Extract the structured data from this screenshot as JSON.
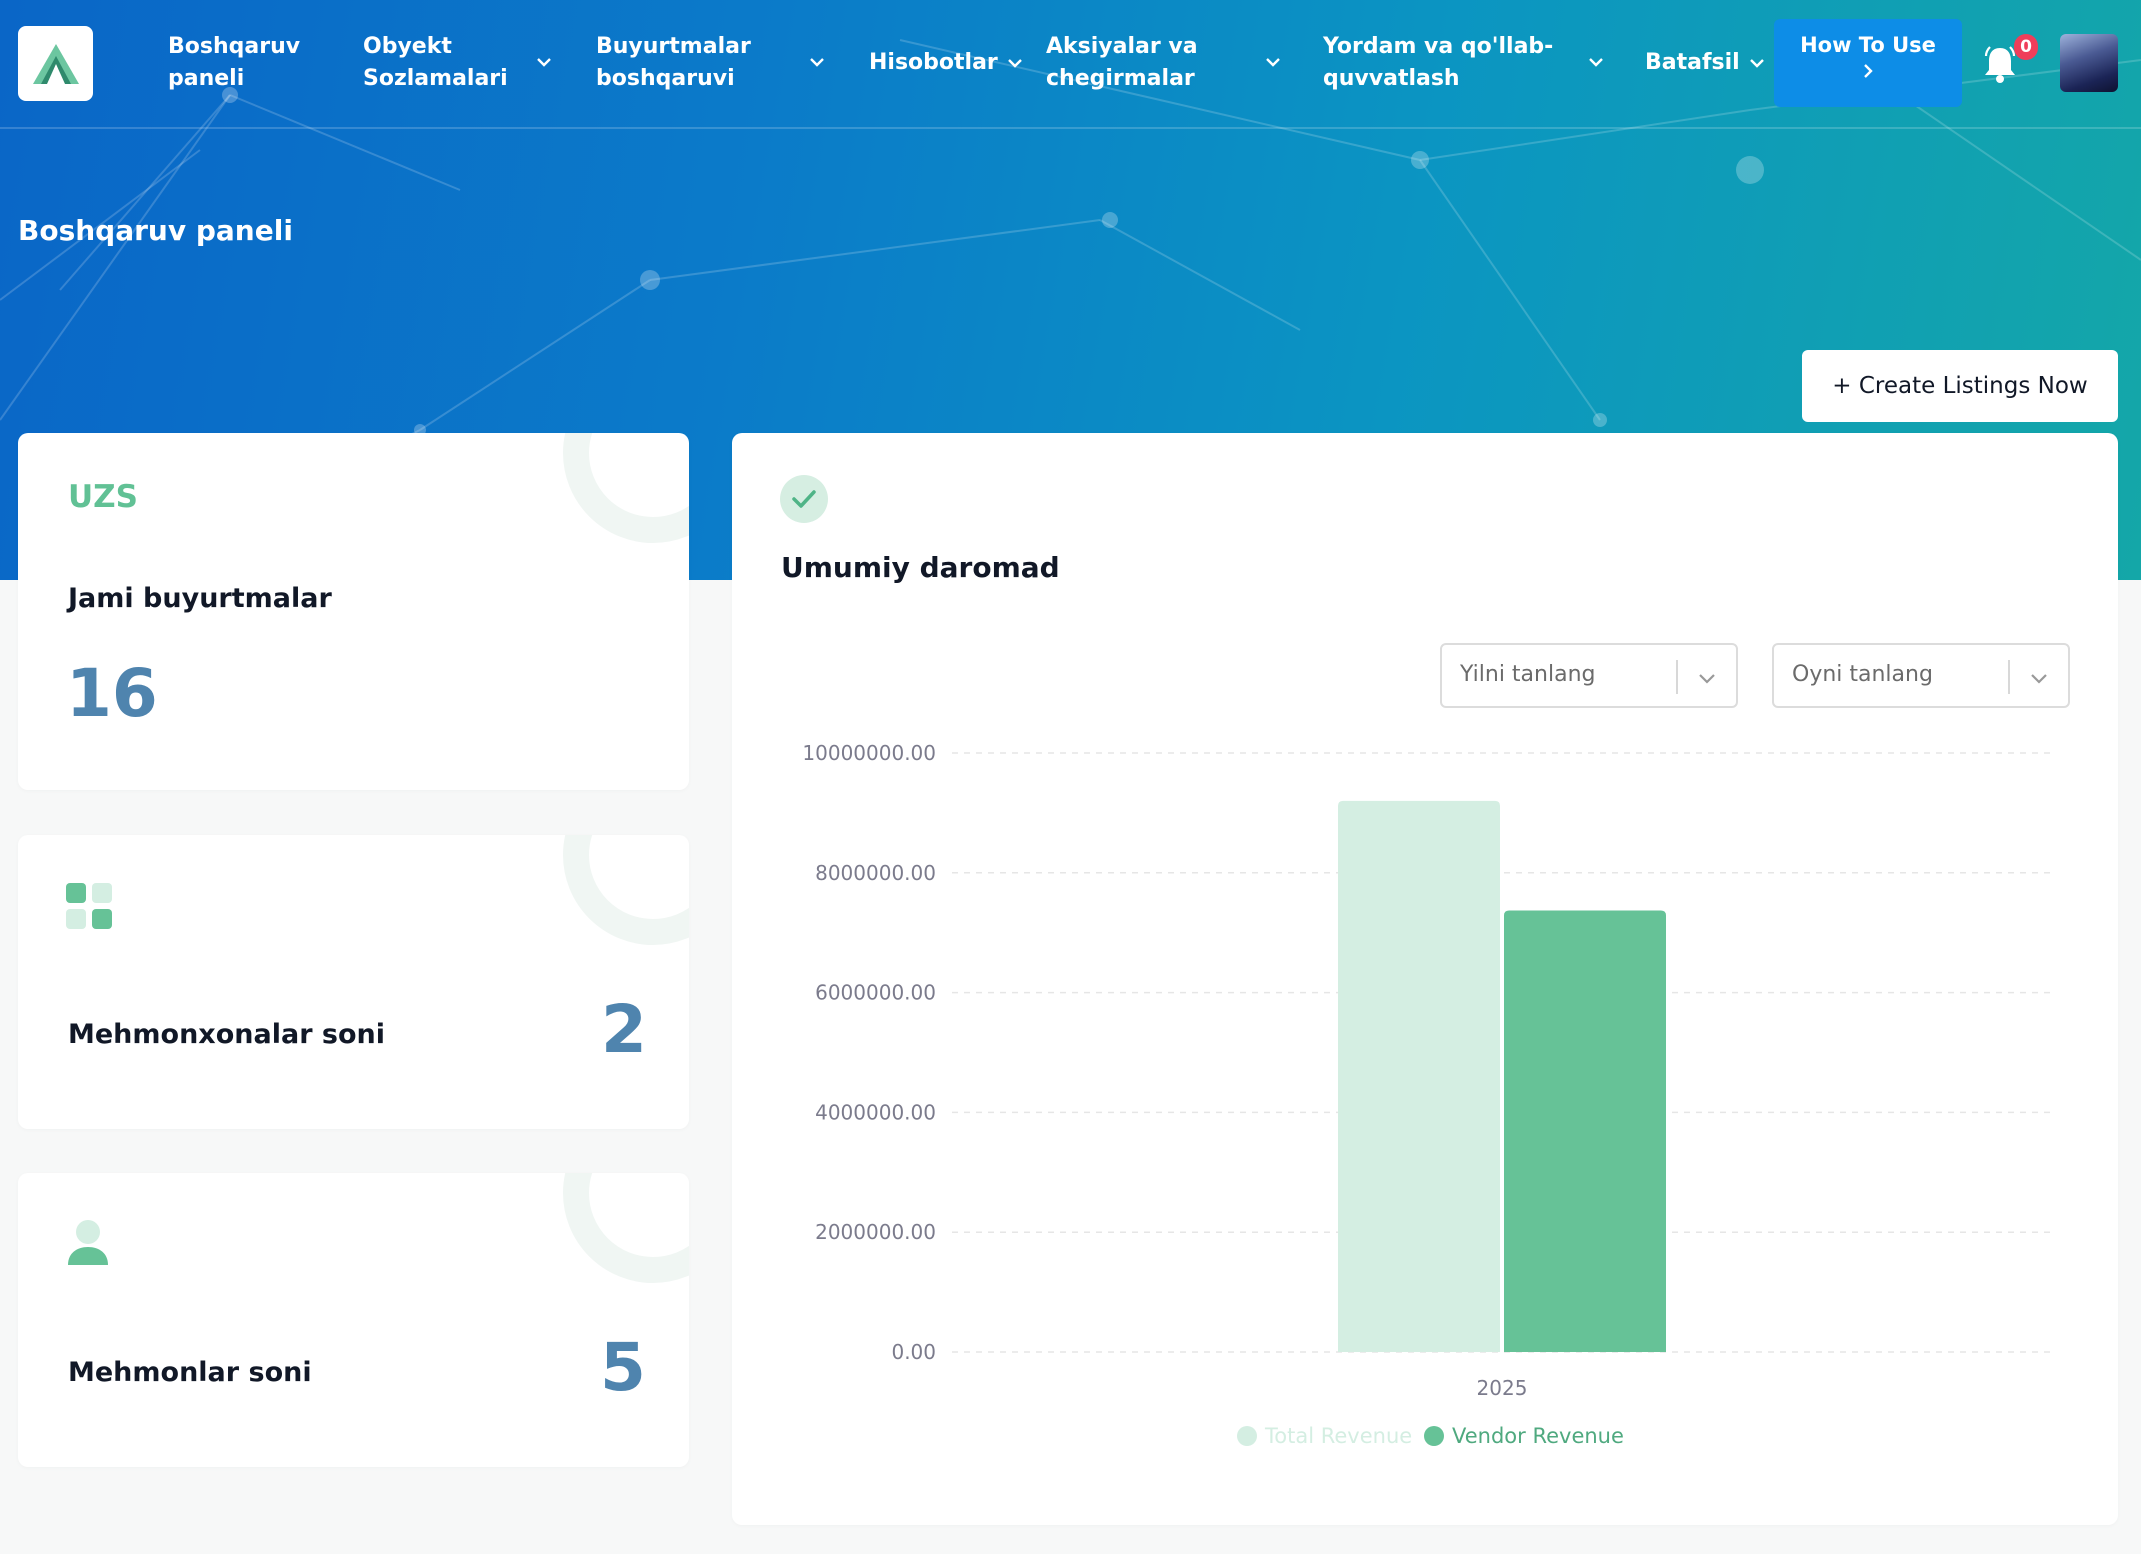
{
  "nav": {
    "items": [
      {
        "label": "Boshqaruv\npaneli",
        "dropdown": false
      },
      {
        "label": "Obyekt\nSozlamalari",
        "dropdown": true
      },
      {
        "label": "Buyurtmalar\nboshqaruvi",
        "dropdown": true
      },
      {
        "label": "Hisobotlar",
        "dropdown": true
      },
      {
        "label": "Aksiyalar va\nchegirmalar",
        "dropdown": true
      },
      {
        "label": "Yordam va qo'llab-\nquvvatlash",
        "dropdown": true
      },
      {
        "label": "Batafsil",
        "dropdown": true
      }
    ],
    "how_to_use": "How To Use",
    "notification_count": "0"
  },
  "page": {
    "title": "Boshqaruv paneli",
    "create_button": "+ Create Listings Now"
  },
  "stats": {
    "currency": "UZS",
    "orders_label": "Jami buyurtmalar",
    "orders_value": "16",
    "hotels_label": "Mehmonxonalar soni",
    "hotels_value": "2",
    "guests_label": "Mehmonlar soni",
    "guests_value": "5"
  },
  "revenue": {
    "title": "Umumiy daromad",
    "year_placeholder": "Yilni tanlang",
    "month_placeholder": "Oyni tanlang"
  },
  "colors": {
    "accent_green": "#61c195",
    "light_green": "#d4eee2",
    "value_blue": "#4f84ae"
  },
  "chart_data": {
    "type": "bar",
    "categories": [
      "2025"
    ],
    "series": [
      {
        "name": "Total Revenue",
        "color": "#d4eee2",
        "values": [
          9200000
        ]
      },
      {
        "name": "Vendor Revenue",
        "color": "#66c297",
        "values": [
          7370000
        ]
      }
    ],
    "yticks": [
      "10000000.00",
      "8000000.00",
      "6000000.00",
      "4000000.00",
      "2000000.00",
      "0.00"
    ],
    "ylim": [
      0,
      10000000
    ],
    "grid": true,
    "legend": "bottom"
  }
}
